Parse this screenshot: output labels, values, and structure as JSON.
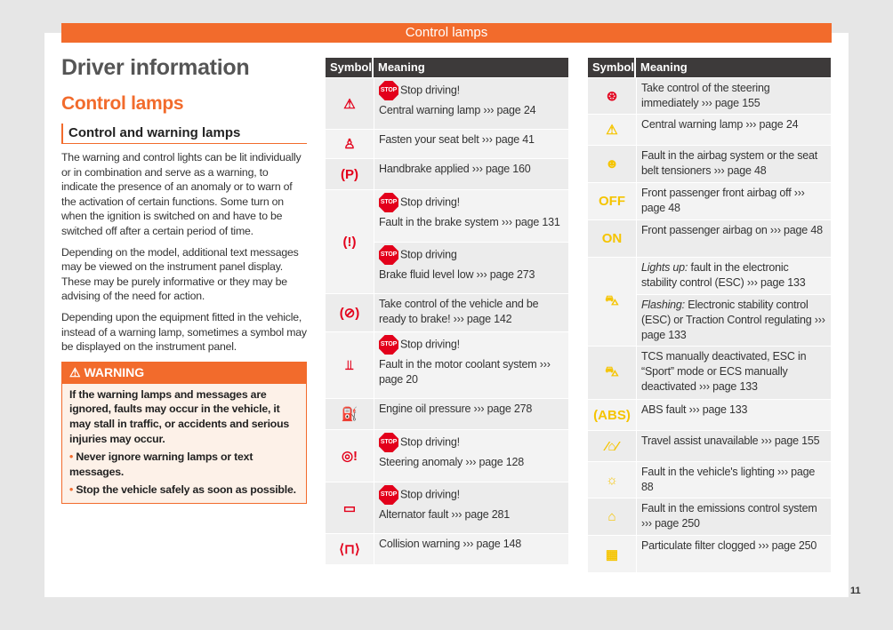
{
  "header": {
    "title": "Control lamps"
  },
  "page_number": "11",
  "left": {
    "title": "Driver information",
    "subtitle": "Control lamps",
    "section": "Control and warning lamps",
    "paragraphs": [
      "The warning and control lights can be lit individually or in combination and serve as a warning, to indicate the presence of an anomaly or to warn of the activation of certain functions. Some turn on when the ignition is switched on and have to be switched off after a certain period of time.",
      "Depending on the model, additional text messages may be viewed on the instrument panel display. These may be purely informative or they may be advising of the need for action.",
      "Depending upon the equipment fitted in the vehicle, instead of a warning lamp, sometimes a symbol may be displayed on the instrument panel."
    ],
    "warning": {
      "label": "WARNING",
      "text": "If the warning lamps and messages are ignored, faults may occur in the vehicle, it may stall in traffic, or accidents and serious injuries may occur.",
      "items": [
        "Never ignore warning lamps or text messages.",
        "Stop the vehicle safely as soon as possible."
      ]
    }
  },
  "colors": {
    "accent": "#f26b2c",
    "red": "#e3001b",
    "yellow": "#f5c400",
    "header_dark": "#3d3a3a"
  },
  "stop_label": "STOP",
  "tables": [
    {
      "headers": [
        "Symbol",
        "Meaning"
      ],
      "rows": [
        {
          "icon": "warning-triangle-icon",
          "glyph": "⚠",
          "color": "red",
          "entries": [
            {
              "stop": "Stop driving!",
              "text": "Central warning lamp ››› page 24"
            }
          ]
        },
        {
          "icon": "seat-belt-icon",
          "glyph": "♙",
          "color": "red",
          "entries": [
            {
              "text": "Fasten your seat belt ››› page 41"
            }
          ]
        },
        {
          "icon": "handbrake-icon",
          "glyph": "(P)",
          "color": "red",
          "entries": [
            {
              "text": "Handbrake applied ››› page 160"
            }
          ]
        },
        {
          "icon": "brake-system-icon",
          "glyph": "(!)",
          "color": "red",
          "entries": [
            {
              "stop": "Stop driving!",
              "text": "Fault in the brake system ››› page 131"
            },
            {
              "stop": "Stop driving",
              "text": "Brake fluid level low ››› page 273"
            }
          ]
        },
        {
          "icon": "brake-ready-icon",
          "glyph": "(⊘)",
          "color": "red",
          "entries": [
            {
              "text": "Take control of the vehicle and be ready to brake! ››› page 142"
            }
          ]
        },
        {
          "icon": "coolant-icon",
          "glyph": "⫫",
          "color": "red",
          "entries": [
            {
              "stop": "Stop driving!",
              "text": "Fault in the motor coolant system ››› page 20"
            }
          ]
        },
        {
          "icon": "oil-can-icon",
          "glyph": "⛽",
          "color": "red",
          "entries": [
            {
              "text": "Engine oil pressure ››› page 278"
            }
          ]
        },
        {
          "icon": "steering-icon",
          "glyph": "◎!",
          "color": "red",
          "entries": [
            {
              "stop": "Stop driving!",
              "text": "Steering anomaly ››› page 128"
            }
          ]
        },
        {
          "icon": "battery-icon",
          "glyph": "▭",
          "color": "red",
          "entries": [
            {
              "stop": "Stop driving!",
              "text": "Alternator fault ››› page 281"
            }
          ]
        },
        {
          "icon": "collision-warning-icon",
          "glyph": "⟨⊓⟩",
          "color": "red",
          "entries": [
            {
              "text": "Collision warning ››› page 148"
            }
          ]
        }
      ]
    },
    {
      "headers": [
        "Symbol",
        "Meaning"
      ],
      "rows": [
        {
          "icon": "steering-hands-icon",
          "glyph": "⊛",
          "color": "red",
          "entries": [
            {
              "text": "Take control of the steering immediately ››› page 155"
            }
          ]
        },
        {
          "icon": "warning-triangle-icon",
          "glyph": "⚠",
          "color": "yellow",
          "entries": [
            {
              "text": "Central warning lamp ››› page 24"
            }
          ]
        },
        {
          "icon": "airbag-icon",
          "glyph": "☻",
          "color": "yellow",
          "entries": [
            {
              "text": "Fault in the airbag system or the seat belt tensioners ››› page 48"
            }
          ]
        },
        {
          "icon": "airbag-off-icon",
          "glyph": "OFF",
          "color": "yellow",
          "entries": [
            {
              "text": "Front passenger front airbag off ››› page 48"
            }
          ]
        },
        {
          "icon": "airbag-on-icon",
          "glyph": "ON",
          "color": "yellow",
          "entries": [
            {
              "text": "Front passenger airbag on ››› page 48"
            }
          ]
        },
        {
          "icon": "esc-icon",
          "glyph": "⛍",
          "color": "yellow",
          "entries": [
            {
              "em": "Lights up:",
              "text": "fault in the electronic stability control (ESC) ››› page 133"
            },
            {
              "em": "Flashing:",
              "text": "Electronic stability control (ESC) or Traction Control regulating ››› page 133"
            }
          ]
        },
        {
          "icon": "esc-off-icon",
          "glyph": "⛍",
          "color": "yellow",
          "entries": [
            {
              "text": "TCS manually deactivated, ESC in “Sport” mode or ECS manually deactivated ››› page 133"
            }
          ]
        },
        {
          "icon": "abs-icon",
          "glyph": "(ABS)",
          "color": "yellow",
          "entries": [
            {
              "text": "ABS fault ››› page 133"
            }
          ]
        },
        {
          "icon": "travel-assist-icon",
          "glyph": "⁄⌂⁄",
          "color": "yellow",
          "entries": [
            {
              "text": "Travel assist unavailable ››› page 155"
            }
          ]
        },
        {
          "icon": "lighting-icon",
          "glyph": "☼",
          "color": "yellow",
          "entries": [
            {
              "text": "Fault in the vehicle's lighting ››› page 88"
            }
          ]
        },
        {
          "icon": "engine-icon",
          "glyph": "⌂",
          "color": "yellow",
          "entries": [
            {
              "text": "Fault in the emissions control system ››› page 250"
            }
          ]
        },
        {
          "icon": "particulate-filter-icon",
          "glyph": "▦",
          "color": "yellow",
          "entries": [
            {
              "text": "Particulate filter clogged ››› page 250"
            }
          ]
        }
      ]
    }
  ]
}
